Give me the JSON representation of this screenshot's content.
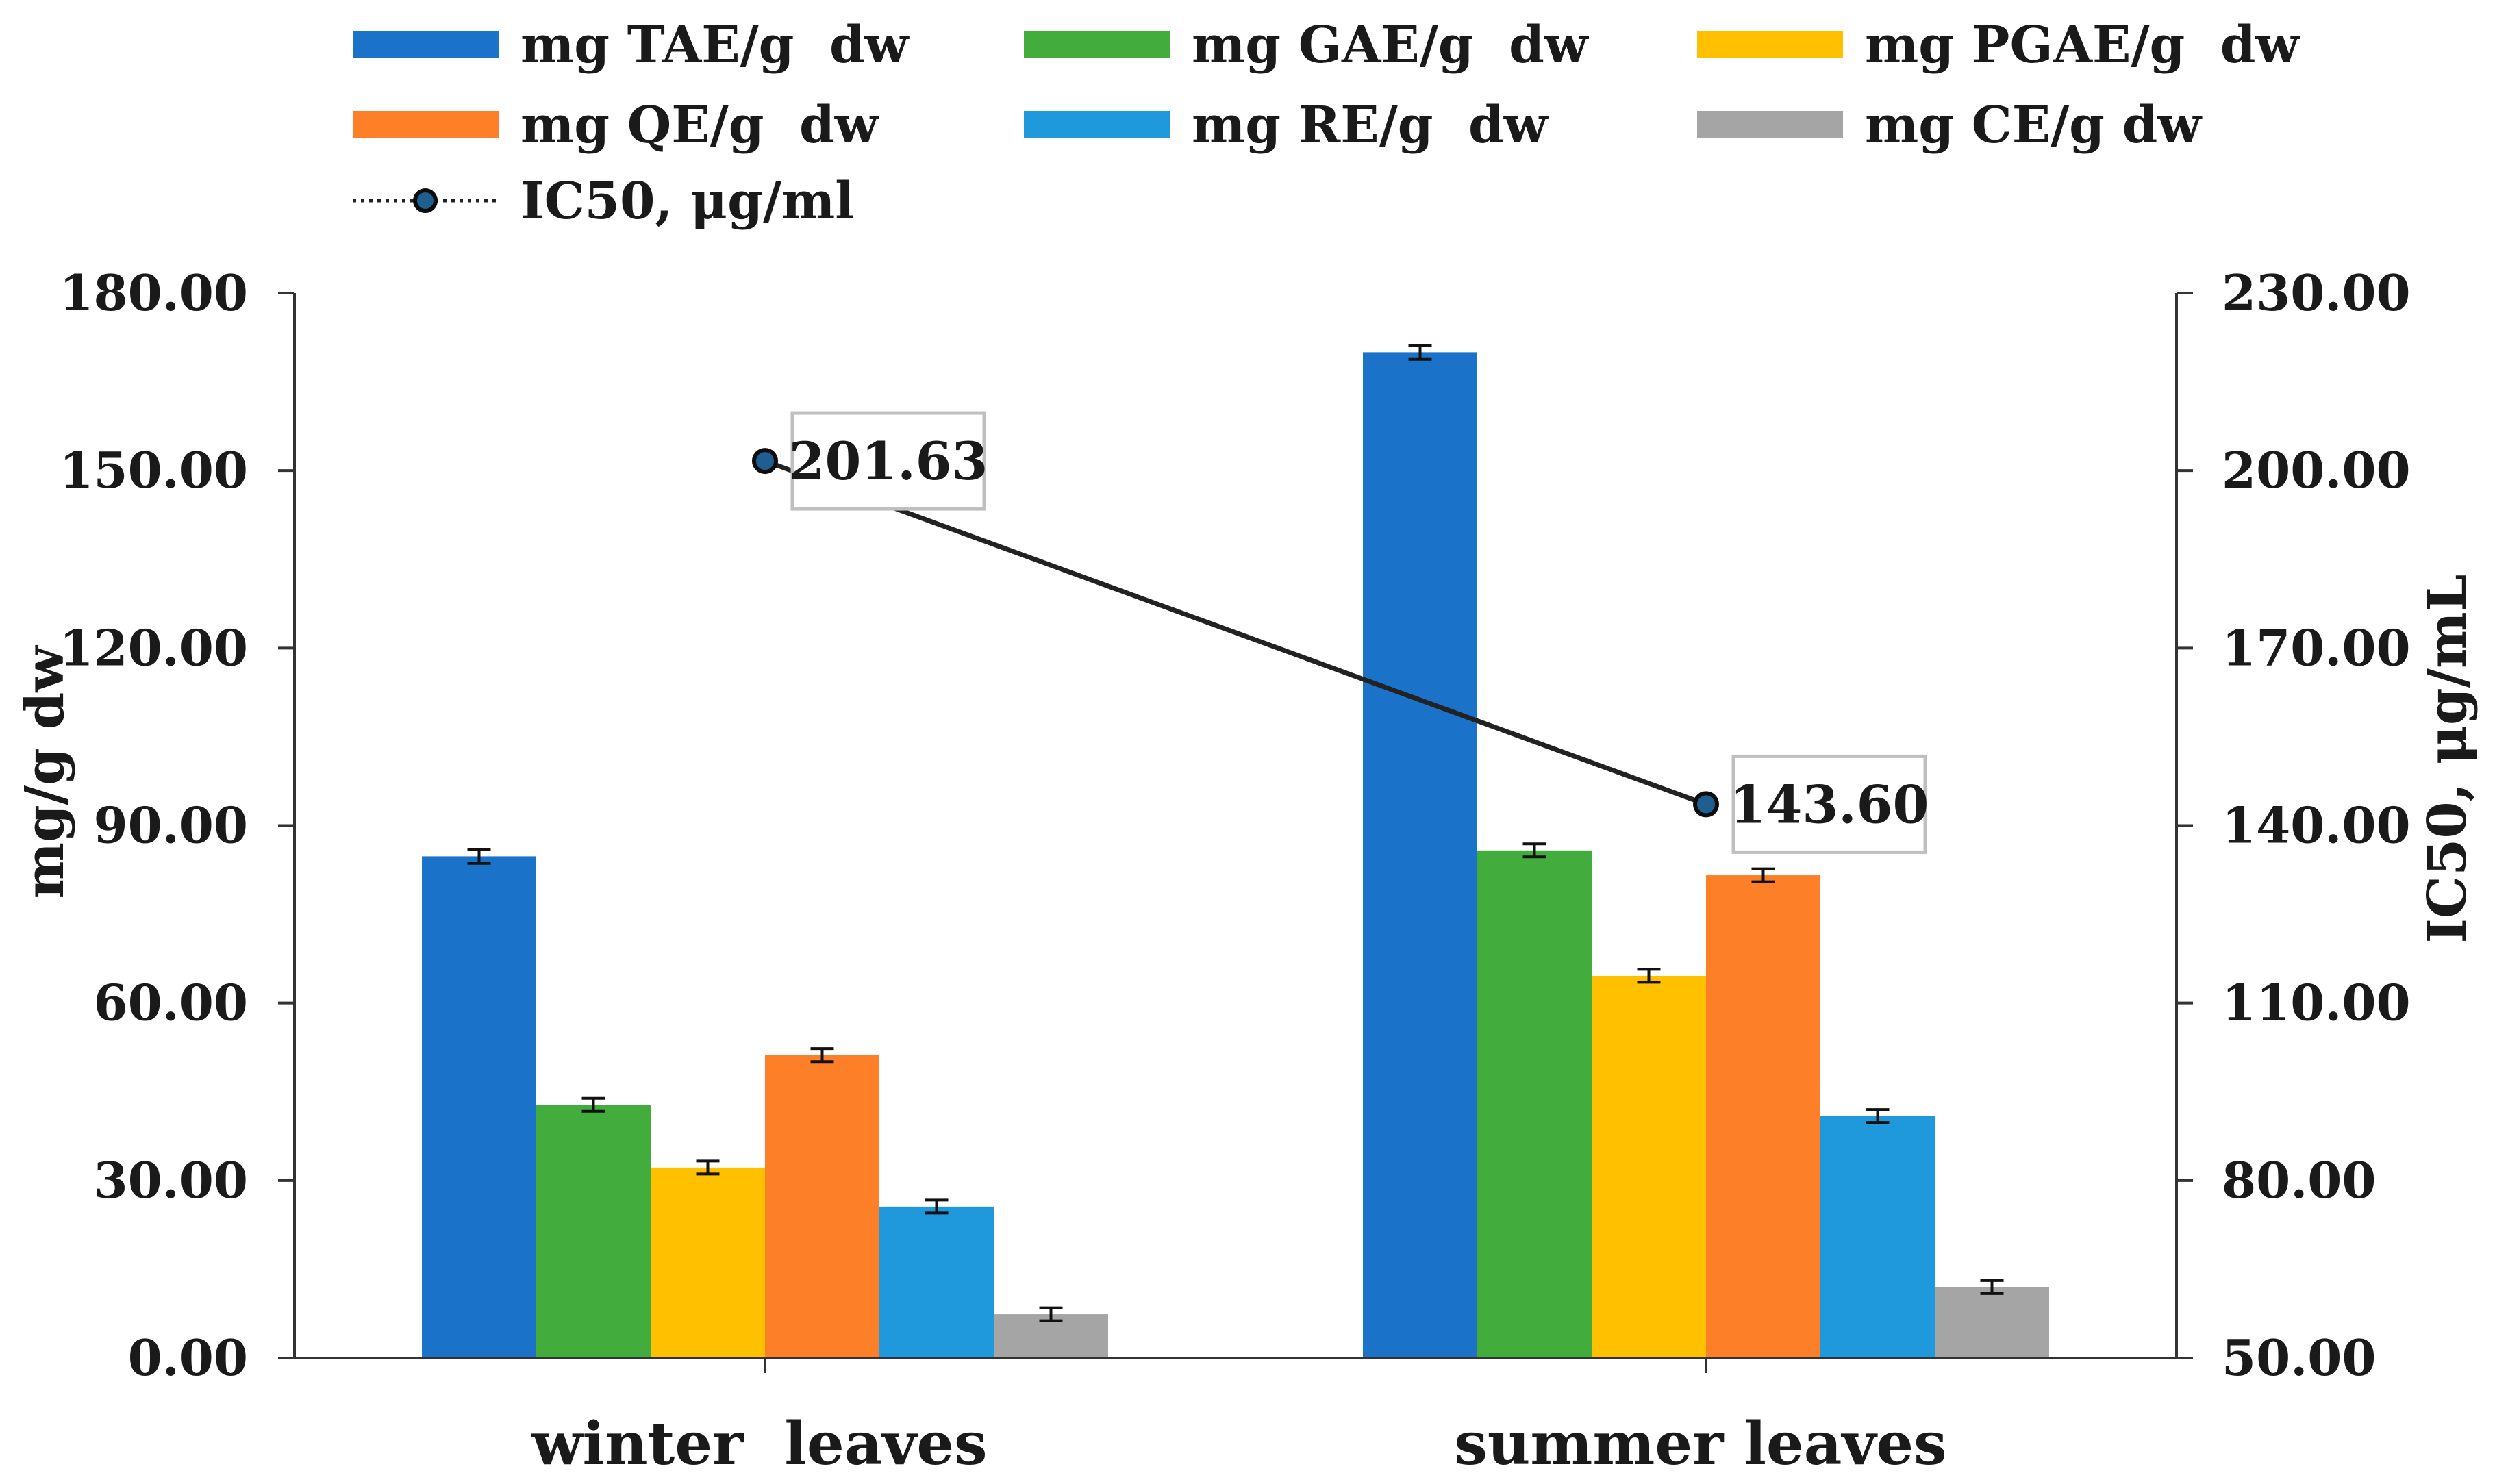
{
  "chart_data": {
    "type": "bar",
    "categories": [
      "winter  leaves",
      "summer leaves"
    ],
    "series": [
      {
        "name": "mg TAE/g  dw",
        "color": "#1a72c9",
        "values": [
          84.8,
          170.0
        ],
        "errors": [
          1.2,
          1.2
        ]
      },
      {
        "name": "mg GAE/g  dw",
        "color": "#42ac3c",
        "values": [
          42.8,
          85.8
        ],
        "errors": [
          1.1,
          1.1
        ]
      },
      {
        "name": "mg PGAE/g  dw",
        "color": "#ffc000",
        "values": [
          32.2,
          64.6
        ],
        "errors": [
          1.1,
          1.1
        ]
      },
      {
        "name": "mg QE/g  dw",
        "color": "#fd7f27",
        "values": [
          51.2,
          81.6
        ],
        "errors": [
          1.1,
          1.1
        ]
      },
      {
        "name": "mg RE/g  dw",
        "color": "#1f99dc",
        "values": [
          25.6,
          40.9
        ],
        "errors": [
          1.1,
          1.1
        ]
      },
      {
        "name": "mg CE/g dw",
        "color": "#a5a5a5",
        "values": [
          7.4,
          12.0
        ],
        "errors": [
          1.1,
          1.1
        ]
      }
    ],
    "line_series": {
      "name": "IC50, μg/ml",
      "axis": "right",
      "values": [
        201.63,
        143.6
      ],
      "labels": [
        "201.63",
        "143.60"
      ],
      "marker_color": "#1f5f8f",
      "line_color": "#222222"
    },
    "ylabel": "mg/g dw",
    "ylim": [
      0,
      180
    ],
    "yticks": [
      0,
      30,
      60,
      90,
      120,
      150,
      180
    ],
    "ytick_labels": [
      "0.00",
      "30.00",
      "60.00",
      "90.00",
      "120.00",
      "150.00",
      "180.00"
    ],
    "y2label": "IC50, μg/mL",
    "y2lim": [
      50,
      230
    ],
    "y2ticks": [
      50,
      80,
      110,
      140,
      170,
      200,
      230
    ],
    "y2tick_labels": [
      "50.00",
      "80.00",
      "110.00",
      "140.00",
      "170.00",
      "200.00",
      "230.00"
    ],
    "legend_position": "top"
  }
}
